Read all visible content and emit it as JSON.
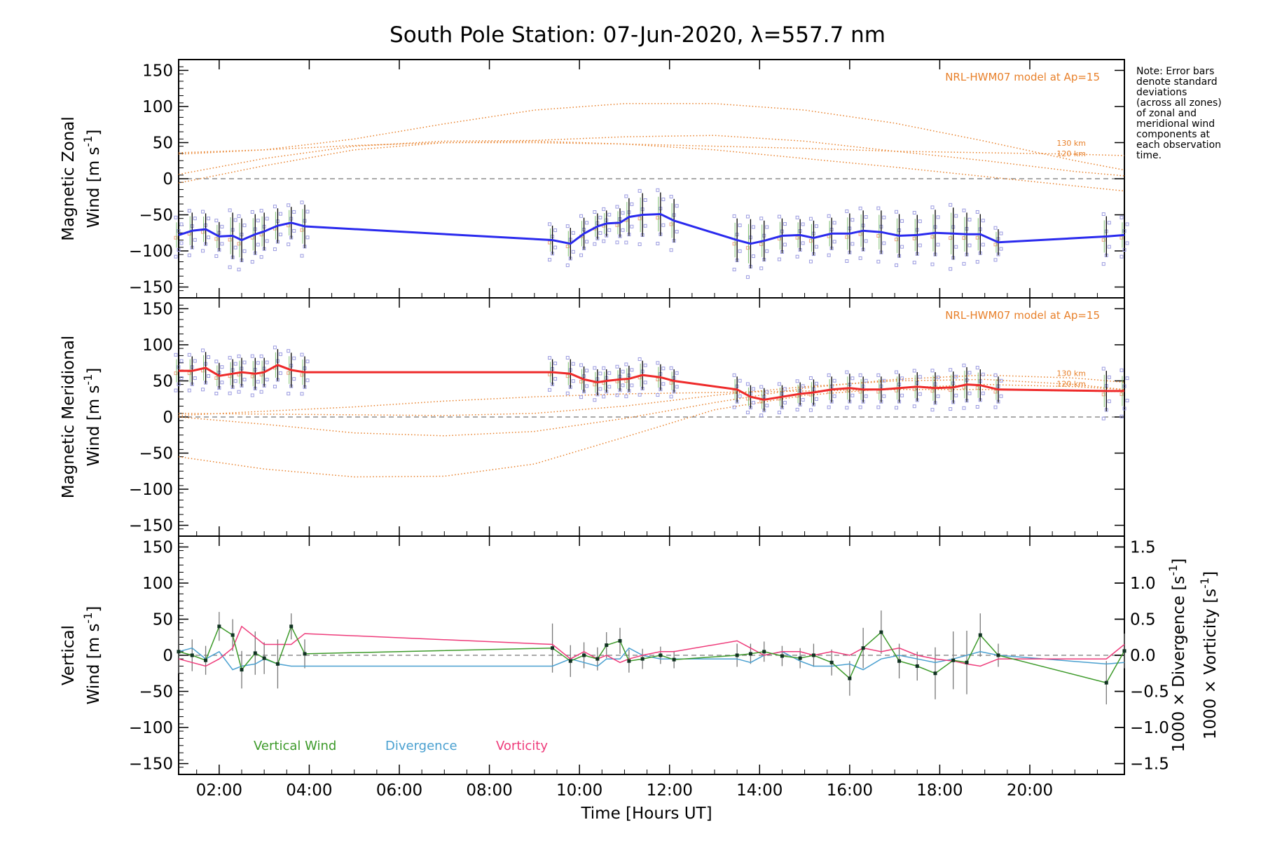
{
  "title": "South Pole Station: 07-Jun-2020, λ=557.7 nm",
  "note": [
    "Note: Error bars",
    "denote standard",
    "deviations",
    "(across all zones)",
    "of zonal and",
    "meridional wind",
    "components at",
    "each observation",
    "time."
  ],
  "xlabel": "Time [Hours UT]",
  "x_ticks": [
    2,
    4,
    6,
    8,
    10,
    12,
    14,
    16,
    18,
    20
  ],
  "x_tick_labels": [
    "02:00",
    "04:00",
    "06:00",
    "08:00",
    "10:00",
    "12:00",
    "14:00",
    "16:00",
    "18:00",
    "20:00"
  ],
  "y_ticks": [
    -150,
    -100,
    -50,
    0,
    50,
    100,
    150
  ],
  "y_tick_labels": [
    "−150",
    "−100",
    "−50",
    "0",
    "50",
    "100",
    "150"
  ],
  "right_ticks": [
    -1.5,
    -1.0,
    -0.5,
    0.0,
    0.5,
    1.0,
    1.5
  ],
  "right_tick_labels": [
    "−1.5",
    "−1.0",
    "−0.5",
    "0.0",
    "0.5",
    "1.0",
    "1.5"
  ],
  "colors": {
    "zonal": "#2a2aee",
    "meridional": "#ee2a2a",
    "model": "#e8802a",
    "vertical": "#3d9a2a",
    "divergence": "#4aa0d0",
    "vorticity": "#ee3b7a",
    "scatter": "#9a9ae0",
    "scatter_alt": "#f0a080",
    "errorbar": "#000000"
  },
  "chart_data": [
    {
      "type": "line",
      "panel": "zonal",
      "ylabel_line1": "Magnetic Zonal",
      "ylabel_line2": "Wind [m s",
      "ylabel_sup": "-1",
      "ylabel_close": "]",
      "model_label": "NRL-HWM07 model at Ap=15",
      "alt_labels": [
        "130 km",
        "120 km"
      ],
      "xlim": [
        1.1,
        22.1
      ],
      "ylim": [
        -165,
        165
      ],
      "x": [
        1.1,
        1.4,
        1.7,
        2.0,
        2.3,
        2.5,
        2.8,
        3.0,
        3.3,
        3.6,
        3.9,
        9.4,
        9.8,
        10.1,
        10.4,
        10.6,
        10.9,
        11.1,
        11.4,
        11.8,
        12.1,
        13.5,
        13.8,
        14.1,
        14.5,
        14.9,
        15.2,
        15.6,
        16.0,
        16.3,
        16.7,
        17.1,
        17.5,
        17.9,
        18.3,
        18.6,
        18.9,
        19.3,
        21.7,
        22.1
      ],
      "values": [
        -78,
        -72,
        -70,
        -80,
        -79,
        -85,
        -77,
        -73,
        -65,
        -61,
        -66,
        -85,
        -90,
        -76,
        -66,
        -62,
        -61,
        -53,
        -50,
        -49,
        -58,
        -85,
        -90,
        -86,
        -79,
        -78,
        -82,
        -76,
        -76,
        -72,
        -74,
        -79,
        -78,
        -75,
        -76,
        -77,
        -77,
        -88,
        -80,
        -78
      ],
      "errors": [
        22,
        25,
        22,
        20,
        32,
        30,
        28,
        26,
        24,
        22,
        30,
        20,
        22,
        22,
        18,
        18,
        20,
        26,
        30,
        30,
        30,
        30,
        34,
        28,
        24,
        22,
        24,
        22,
        28,
        28,
        30,
        30,
        28,
        32,
        36,
        30,
        28,
        18,
        28,
        22
      ],
      "model_curves": [
        {
          "x": [
            1.1,
            3,
            5,
            7,
            9,
            11,
            13,
            15,
            17,
            19,
            21,
            22.1
          ],
          "y": [
            36,
            40,
            46,
            50,
            50,
            48,
            45,
            42,
            38,
            36,
            34,
            32
          ]
        },
        {
          "x": [
            1.1,
            3,
            5,
            7,
            9,
            11,
            13,
            15,
            17,
            19,
            21,
            22.1
          ],
          "y": [
            6,
            28,
            45,
            52,
            53,
            58,
            60,
            52,
            38,
            25,
            10,
            4
          ]
        },
        {
          "x": [
            1.1,
            3,
            5,
            7,
            9,
            11,
            13,
            15,
            17,
            19,
            21,
            22.1
          ],
          "y": [
            34,
            40,
            55,
            76,
            95,
            104,
            104,
            95,
            77,
            52,
            25,
            12
          ]
        },
        {
          "x": [
            1.1,
            3,
            5,
            7,
            9,
            11,
            13,
            15,
            17,
            19,
            21,
            22.1
          ],
          "y": [
            -6,
            18,
            40,
            50,
            52,
            48,
            40,
            28,
            16,
            3,
            -10,
            -17
          ]
        }
      ]
    },
    {
      "type": "line",
      "panel": "meridional",
      "ylabel_line1": "Magnetic Meridional",
      "ylabel_line2": "Wind [m s",
      "ylabel_sup": "-1",
      "ylabel_close": "]",
      "model_label": "NRL-HWM07 model at Ap=15",
      "alt_labels": [
        "130 km",
        "120 km"
      ],
      "xlim": [
        1.1,
        22.1
      ],
      "ylim": [
        -165,
        165
      ],
      "x": [
        1.1,
        1.4,
        1.7,
        2.0,
        2.3,
        2.5,
        2.8,
        3.0,
        3.3,
        3.6,
        3.9,
        9.4,
        9.8,
        10.1,
        10.4,
        10.6,
        10.9,
        11.1,
        11.4,
        11.8,
        12.1,
        13.5,
        13.8,
        14.1,
        14.5,
        14.9,
        15.2,
        15.6,
        16.0,
        16.3,
        16.7,
        17.1,
        17.5,
        17.9,
        18.3,
        18.6,
        18.9,
        19.3,
        21.7,
        22.1
      ],
      "values": [
        64,
        64,
        68,
        57,
        60,
        62,
        60,
        62,
        72,
        65,
        62,
        62,
        60,
        52,
        48,
        50,
        52,
        53,
        58,
        55,
        50,
        38,
        28,
        24,
        28,
        32,
        34,
        38,
        40,
        38,
        38,
        40,
        42,
        40,
        41,
        45,
        44,
        38,
        36,
        36
      ],
      "errors": [
        20,
        20,
        22,
        18,
        20,
        20,
        22,
        20,
        22,
        24,
        22,
        18,
        20,
        18,
        18,
        16,
        16,
        18,
        20,
        18,
        16,
        18,
        16,
        16,
        16,
        16,
        18,
        18,
        20,
        18,
        18,
        20,
        20,
        22,
        22,
        24,
        22,
        18,
        28,
        26
      ],
      "model_curves": [
        {
          "x": [
            1.1,
            3,
            5,
            7,
            9,
            11,
            13,
            15,
            17,
            19,
            21,
            22.1
          ],
          "y": [
            5,
            4,
            3,
            2,
            5,
            15,
            30,
            42,
            50,
            52,
            45,
            38
          ]
        },
        {
          "x": [
            1.1,
            3,
            5,
            7,
            9,
            11,
            13,
            15,
            17,
            19,
            21,
            22.1
          ],
          "y": [
            2,
            8,
            14,
            22,
            28,
            32,
            34,
            36,
            38,
            38,
            36,
            35
          ]
        },
        {
          "x": [
            1.1,
            3,
            5,
            7,
            9,
            11,
            13,
            15,
            17,
            19,
            21,
            22.1
          ],
          "y": [
            0,
            -10,
            -22,
            -26,
            -20,
            -2,
            20,
            40,
            52,
            58,
            54,
            48
          ]
        },
        {
          "x": [
            1.1,
            3,
            5,
            7,
            9,
            11,
            13,
            15,
            17,
            19,
            21,
            22.1
          ],
          "y": [
            -55,
            -72,
            -83,
            -82,
            -65,
            -28,
            10,
            30,
            40,
            45,
            42,
            38
          ]
        }
      ]
    },
    {
      "type": "line",
      "panel": "vertical",
      "ylabel_line1": "Vertical",
      "ylabel_line2": "Wind [m s",
      "ylabel_sup": "-1",
      "ylabel_close": "]",
      "right_label_div": "1000 × Divergence [s",
      "right_label_vort": "1000 × Vorticity [s",
      "right_label_sup": "-1",
      "right_label_close": "]",
      "legend": [
        "Vertical Wind",
        "Divergence",
        "Vorticity"
      ],
      "xlim": [
        1.1,
        22.1
      ],
      "ylim": [
        -165,
        165
      ],
      "right_ylim": [
        -1.65,
        1.65
      ],
      "x": [
        1.1,
        1.4,
        1.7,
        2.0,
        2.3,
        2.5,
        2.8,
        3.0,
        3.3,
        3.6,
        3.9,
        9.4,
        9.8,
        10.1,
        10.4,
        10.6,
        10.9,
        11.1,
        11.4,
        11.8,
        12.1,
        13.5,
        13.8,
        14.1,
        14.5,
        14.9,
        15.2,
        15.6,
        16.0,
        16.3,
        16.7,
        17.1,
        17.5,
        17.9,
        18.3,
        18.6,
        18.9,
        19.3,
        21.7,
        22.1
      ],
      "vertical_wind": [
        5,
        0,
        -7,
        40,
        28,
        -20,
        3,
        -4,
        -12,
        40,
        2,
        10,
        -8,
        0,
        -5,
        14,
        20,
        -8,
        -5,
        0,
        -6,
        0,
        2,
        5,
        -1,
        -4,
        0,
        -10,
        -32,
        10,
        32,
        -8,
        -15,
        -25,
        -7,
        -10,
        28,
        0,
        -38,
        6
      ],
      "vertical_errors": [
        30,
        22,
        20,
        20,
        22,
        26,
        30,
        22,
        34,
        18,
        20,
        34,
        22,
        18,
        16,
        18,
        18,
        16,
        14,
        12,
        12,
        16,
        14,
        14,
        14,
        14,
        16,
        18,
        24,
        28,
        30,
        24,
        20,
        36,
        40,
        44,
        30,
        16,
        30,
        24
      ],
      "divergence": [
        0.05,
        0.1,
        -0.05,
        0.05,
        -0.2,
        -0.15,
        -0.12,
        -0.05,
        -0.12,
        -0.15,
        -0.15,
        -0.15,
        -0.05,
        -0.1,
        -0.15,
        -0.05,
        -0.05,
        0.1,
        0.0,
        -0.05,
        -0.05,
        -0.05,
        -0.1,
        0.0,
        0.05,
        -0.08,
        -0.15,
        -0.15,
        -0.12,
        -0.2,
        -0.05,
        0.0,
        -0.05,
        -0.1,
        -0.05,
        0.0,
        0.05,
        0.0,
        -0.12,
        -0.1
      ],
      "vorticity": [
        -0.05,
        -0.1,
        -0.15,
        -0.05,
        0.1,
        0.4,
        0.25,
        0.15,
        0.15,
        0.15,
        0.3,
        0.15,
        -0.05,
        0.05,
        -0.05,
        0.0,
        -0.1,
        -0.05,
        0.0,
        0.05,
        0.05,
        0.2,
        0.1,
        0.0,
        0.05,
        0.05,
        0.0,
        0.05,
        0.0,
        0.1,
        0.05,
        0.1,
        0.0,
        -0.05,
        -0.08,
        -0.12,
        -0.15,
        -0.05,
        -0.05,
        0.15
      ]
    }
  ]
}
